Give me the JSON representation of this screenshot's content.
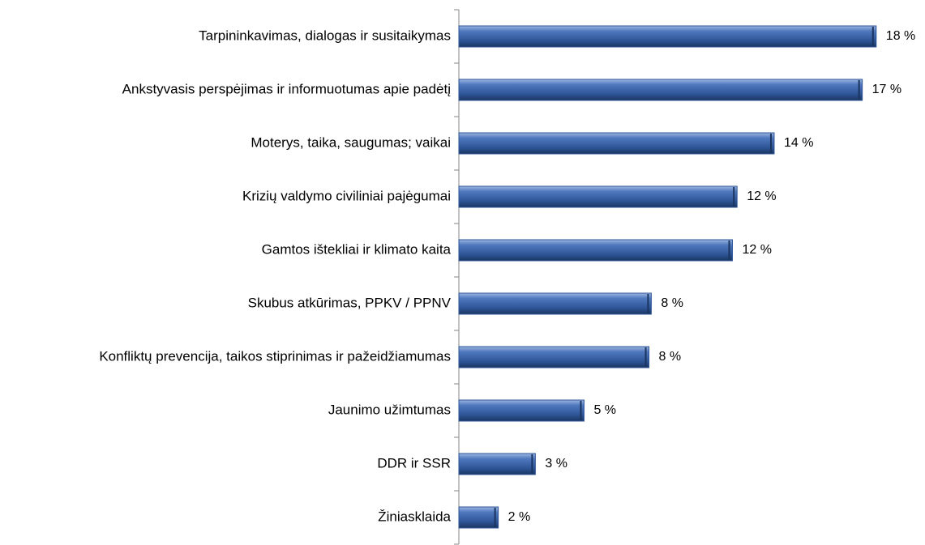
{
  "chart_data": {
    "type": "bar",
    "orientation": "horizontal",
    "categories": [
      "Tarpininkavimas, dialogas ir susitaikymas",
      "Ankstyvasis perspėjimas ir informuotumas apie padėtį",
      "Moterys, taika, saugumas; vaikai",
      "Krizių valdymo civiliniai pajėgumai",
      "Gamtos ištekliai ir klimato kaita",
      "Skubus atkūrimas, PPKV / PPNV",
      "Konfliktų prevencija, taikos stiprinimas ir pažeidžiamumas",
      "Jaunimo užimtumas",
      "DDR ir SSR",
      "Žiniasklaida"
    ],
    "values": [
      18.0,
      17.4,
      13.6,
      12.0,
      11.8,
      8.3,
      8.2,
      5.4,
      3.3,
      1.7
    ],
    "value_labels": [
      "18 %",
      "17 %",
      "14 %",
      "12 %",
      "12 %",
      "8 %",
      "8 %",
      "5 %",
      "3 %",
      "2 %"
    ],
    "color": "#2e5597",
    "xlim": [
      0,
      20
    ]
  }
}
